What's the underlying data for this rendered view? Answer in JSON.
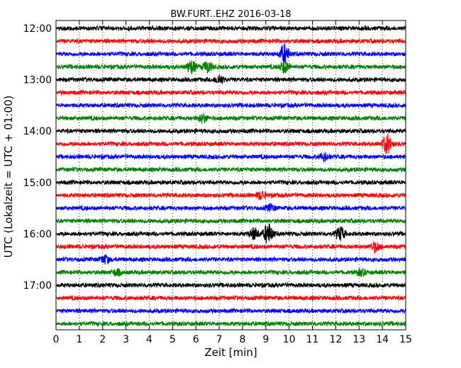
{
  "chart_data": {
    "type": "line",
    "title": "BW.FURT..EHZ 2016-03-18",
    "xlabel": "Zeit  [min]",
    "ylabel": "UTC (Lokalzeit = UTC + 01:00)",
    "xlim": [
      0,
      15
    ],
    "x_ticks": [
      0,
      1,
      2,
      3,
      4,
      5,
      6,
      7,
      8,
      9,
      10,
      11,
      12,
      13,
      14,
      15
    ],
    "y_ticks": [
      "12:00",
      "13:00",
      "14:00",
      "15:00",
      "16:00",
      "17:00"
    ],
    "grid": "x-dotted",
    "trace_interval_min": 15,
    "trace_colors": [
      "#000000",
      "#ff0000",
      "#0000ff",
      "#008000"
    ],
    "traces": [
      {
        "start": "12:00",
        "color": "#000000"
      },
      {
        "start": "12:15",
        "color": "#ff0000"
      },
      {
        "start": "12:30",
        "color": "#0000ff"
      },
      {
        "start": "12:45",
        "color": "#008000"
      },
      {
        "start": "13:00",
        "color": "#000000"
      },
      {
        "start": "13:15",
        "color": "#ff0000"
      },
      {
        "start": "13:30",
        "color": "#0000ff"
      },
      {
        "start": "13:45",
        "color": "#008000"
      },
      {
        "start": "14:00",
        "color": "#000000"
      },
      {
        "start": "14:15",
        "color": "#ff0000"
      },
      {
        "start": "14:30",
        "color": "#0000ff"
      },
      {
        "start": "14:45",
        "color": "#008000"
      },
      {
        "start": "15:00",
        "color": "#000000"
      },
      {
        "start": "15:15",
        "color": "#ff0000"
      },
      {
        "start": "15:30",
        "color": "#0000ff"
      },
      {
        "start": "15:45",
        "color": "#008000"
      },
      {
        "start": "16:00",
        "color": "#000000"
      },
      {
        "start": "16:15",
        "color": "#ff0000"
      },
      {
        "start": "16:30",
        "color": "#0000ff"
      },
      {
        "start": "16:45",
        "color": "#008000"
      },
      {
        "start": "17:00",
        "color": "#000000"
      },
      {
        "start": "17:15",
        "color": "#ff0000"
      },
      {
        "start": "17:30",
        "color": "#0000ff"
      },
      {
        "start": "17:45",
        "color": "#008000"
      }
    ],
    "events": [
      {
        "trace": 2,
        "minute": 9.8,
        "amp": 3.0
      },
      {
        "trace": 3,
        "minute": 5.8,
        "amp": 2.2
      },
      {
        "trace": 3,
        "minute": 6.5,
        "amp": 2.0
      },
      {
        "trace": 3,
        "minute": 9.8,
        "amp": 2.0
      },
      {
        "trace": 4,
        "minute": 7.0,
        "amp": 1.6
      },
      {
        "trace": 7,
        "minute": 6.3,
        "amp": 1.6
      },
      {
        "trace": 9,
        "minute": 14.2,
        "amp": 3.0
      },
      {
        "trace": 10,
        "minute": 11.5,
        "amp": 1.6
      },
      {
        "trace": 13,
        "minute": 8.8,
        "amp": 1.5
      },
      {
        "trace": 14,
        "minute": 9.2,
        "amp": 1.4
      },
      {
        "trace": 16,
        "minute": 8.5,
        "amp": 2.0
      },
      {
        "trace": 16,
        "minute": 9.1,
        "amp": 3.2
      },
      {
        "trace": 16,
        "minute": 12.2,
        "amp": 2.2
      },
      {
        "trace": 17,
        "minute": 13.7,
        "amp": 1.8
      },
      {
        "trace": 18,
        "minute": 2.1,
        "amp": 1.6
      },
      {
        "trace": 19,
        "minute": 2.6,
        "amp": 1.3
      },
      {
        "trace": 19,
        "minute": 13.1,
        "amp": 1.3
      }
    ]
  }
}
